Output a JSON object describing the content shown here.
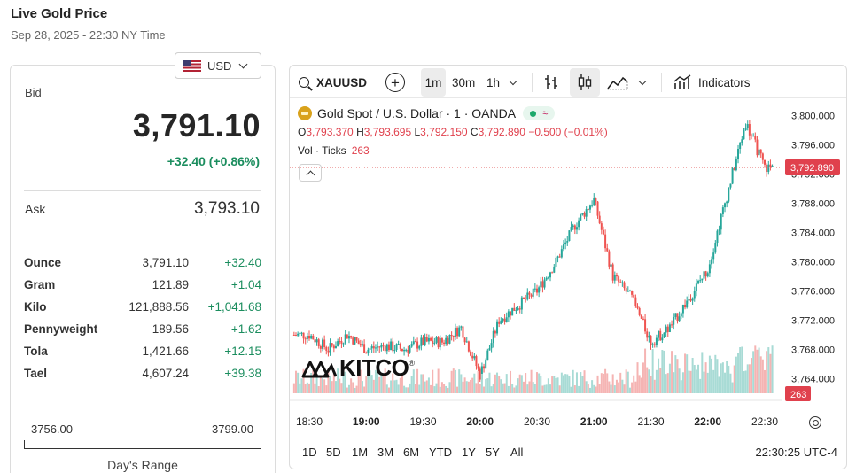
{
  "page": {
    "title": "Live Gold Price",
    "subtitle": "Sep 28, 2025 - 22:30 NY Time"
  },
  "currency": {
    "selected": "USD",
    "flag_icon": "us-flag-icon"
  },
  "quote": {
    "bid_label": "Bid",
    "bid": "3,791.10",
    "bid_change": "+32.40 (+0.86%)",
    "ask_label": "Ask",
    "ask": "3,793.10"
  },
  "units": [
    {
      "name": "Ounce",
      "price": "3,791.10",
      "change": "+32.40"
    },
    {
      "name": "Gram",
      "price": "121.89",
      "change": "+1.04"
    },
    {
      "name": "Kilo",
      "price": "121,888.56",
      "change": "+1,041.68"
    },
    {
      "name": "Pennyweight",
      "price": "189.56",
      "change": "+1.62"
    },
    {
      "name": "Tola",
      "price": "1,421.66",
      "change": "+12.15"
    },
    {
      "name": "Tael",
      "price": "4,607.24",
      "change": "+39.38"
    }
  ],
  "days_range": {
    "low": "3756.00",
    "high": "3799.00",
    "label": "Day's Range"
  },
  "toolbar": {
    "symbol": "XAUUSD",
    "timeframes": [
      "1m",
      "30m",
      "1h"
    ],
    "selected_timeframe": "1m",
    "indicators_label": "Indicators"
  },
  "legend": {
    "title": "Gold Spot  / U.S. Dollar · 1 · OANDA",
    "status_symbol": "≈",
    "o_label": "O",
    "o": "3,793.370",
    "h_label": "H",
    "h": "3,793.695",
    "l_label": "L",
    "l": "3,792.150",
    "c_label": "C",
    "c": "3,792.890",
    "change": "−0.500 (−0.01%)",
    "vol_label": "Vol · Ticks",
    "vol": "263"
  },
  "logo": {
    "text": "KITCO",
    "mark": "®"
  },
  "range_buttons": [
    "1D",
    "5D",
    "1M",
    "3M",
    "6M",
    "YTD",
    "1Y",
    "5Y",
    "All"
  ],
  "clock": "22:30:25 UTC-4",
  "chart_data": {
    "type": "line",
    "y_ticks": [
      "3,800.000",
      "3,796.000",
      "3,792.000",
      "3,788.000",
      "3,784.000",
      "3,780.000",
      "3,776.000",
      "3,772.000",
      "3,768.000",
      "3,764.000"
    ],
    "ylim": [
      3762,
      3801
    ],
    "x_ticks": [
      "18:30",
      "19:00",
      "19:30",
      "20:00",
      "20:30",
      "21:00",
      "21:30",
      "22:00",
      "22:30"
    ],
    "last_price": 3792.89,
    "last_price_label": "3,792.890",
    "last_volume_label": "263",
    "colors": {
      "up": "#26a69a",
      "down": "#ef5350",
      "vol_up": "#a8dbd5",
      "vol_down": "#f5b4b3"
    },
    "series": [
      {
        "name": "Gold Spot / U.S. Dollar",
        "x": [
          "18:30",
          "18:40",
          "18:50",
          "19:00",
          "19:10",
          "19:20",
          "19:30",
          "19:40",
          "19:50",
          "20:00",
          "20:10",
          "20:20",
          "20:30",
          "20:40",
          "20:50",
          "21:00",
          "21:10",
          "21:20",
          "21:30",
          "21:40",
          "21:50",
          "22:00",
          "22:10",
          "22:20",
          "22:30"
        ],
        "y": [
          3770,
          3768,
          3770,
          3768,
          3768.5,
          3768,
          3769,
          3769,
          3771,
          3764.5,
          3772,
          3774,
          3776,
          3780,
          3785,
          3788.5,
          3778,
          3775,
          3769,
          3771,
          3775,
          3779,
          3789,
          3799,
          3792.89
        ]
      }
    ]
  }
}
